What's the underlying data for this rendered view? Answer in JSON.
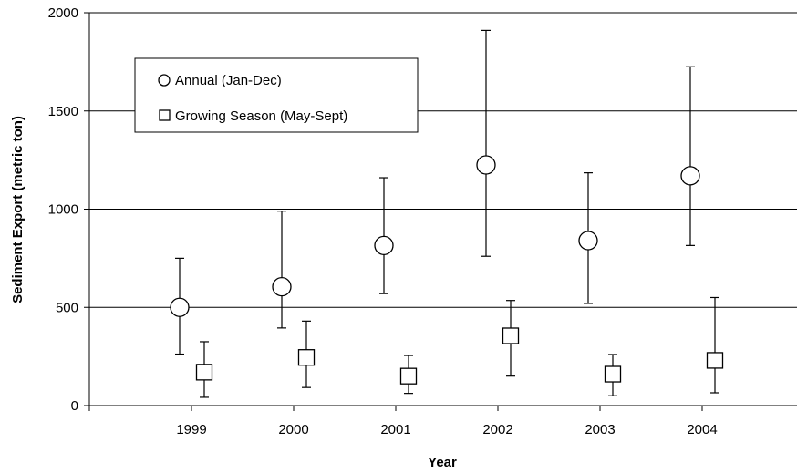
{
  "chart_data": {
    "type": "scatter",
    "title": "",
    "xlabel": "Year",
    "ylabel": "Sediment Export (metric ton)",
    "categories": [
      "1999",
      "2000",
      "2001",
      "2002",
      "2003",
      "2004"
    ],
    "ylim": [
      0,
      2000
    ],
    "yticks": [
      "0",
      "500",
      "1000",
      "1500",
      "2000"
    ],
    "grid": "horizontal",
    "legend_position": "top-left",
    "series": [
      {
        "name": "Annual (Jan-Dec)",
        "marker": "circle",
        "values": [
          500,
          605,
          815,
          1225,
          840,
          1170
        ],
        "err_low": [
          262,
          395,
          570,
          760,
          520,
          815
        ],
        "err_high": [
          750,
          990,
          1160,
          1910,
          1185,
          1725
        ]
      },
      {
        "name": "Growing Season (May-Sept)",
        "marker": "square",
        "values": [
          170,
          245,
          150,
          355,
          160,
          230
        ],
        "err_low": [
          42,
          92,
          62,
          150,
          50,
          65
        ],
        "err_high": [
          325,
          430,
          255,
          535,
          260,
          550
        ]
      }
    ]
  }
}
